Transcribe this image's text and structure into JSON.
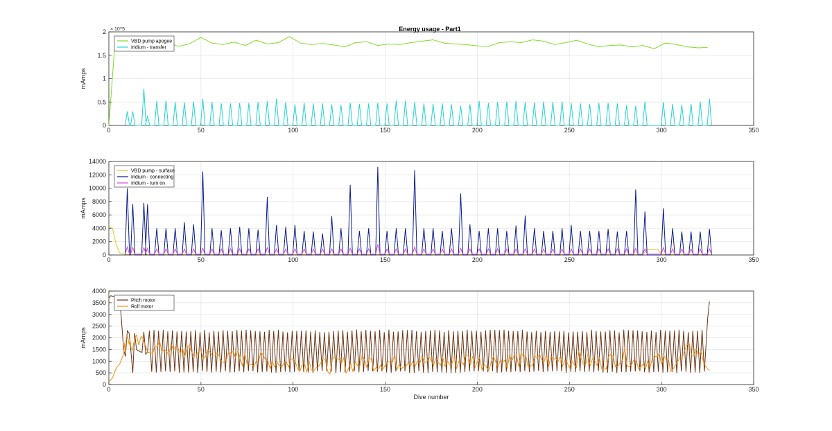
{
  "figure": {
    "title": "Energy usage - Part1"
  },
  "chart_data": [
    {
      "type": "line",
      "title": "Energy usage - Part1",
      "xlabel": "",
      "ylabel": "mAmps",
      "xlim": [
        0,
        350
      ],
      "ylim": [
        0,
        200000
      ],
      "xticks": [
        0,
        50,
        100,
        150,
        200,
        250,
        300,
        350
      ],
      "yticks": [
        0,
        50000,
        100000,
        150000,
        200000
      ],
      "ytick_labels": [
        "0",
        "0.5",
        "1",
        "1.5",
        "2"
      ],
      "y_exponent": "× 10^5",
      "grid": true,
      "legend_position": "top-left",
      "series": [
        {
          "name": "VBD pump apogee",
          "color": "#7fdb23",
          "x": [
            0,
            3,
            6,
            10,
            14,
            20,
            26,
            32,
            38,
            44,
            50,
            56,
            62,
            68,
            74,
            80,
            86,
            92,
            98,
            104,
            110,
            116,
            122,
            128,
            134,
            140,
            146,
            152,
            158,
            164,
            170,
            176,
            182,
            188,
            194,
            200,
            206,
            212,
            218,
            224,
            230,
            236,
            242,
            248,
            254,
            260,
            266,
            272,
            278,
            284,
            290,
            296,
            302,
            308,
            314,
            320,
            325
          ],
          "y": [
            0,
            160000,
            175000,
            170000,
            168000,
            172000,
            170000,
            175000,
            169000,
            175000,
            188000,
            176000,
            173000,
            178000,
            171000,
            182000,
            174000,
            177000,
            190000,
            176000,
            173000,
            175000,
            172000,
            168000,
            177000,
            179000,
            171000,
            174000,
            173000,
            177000,
            180000,
            183000,
            176000,
            174000,
            173000,
            170000,
            169000,
            177000,
            179000,
            177000,
            183000,
            180000,
            173000,
            177000,
            182000,
            174000,
            168000,
            171000,
            172000,
            168000,
            171000,
            164000,
            176000,
            173000,
            168000,
            166000,
            167000
          ]
        },
        {
          "name": "Iridium - transfer",
          "color": "#22d3d3",
          "peaks_x": [
            10,
            13,
            19,
            21,
            26,
            31,
            36,
            41,
            46,
            51,
            56,
            61,
            66,
            71,
            76,
            81,
            86,
            91,
            96,
            101,
            106,
            111,
            116,
            121,
            126,
            131,
            136,
            141,
            146,
            151,
            156,
            161,
            166,
            171,
            176,
            181,
            186,
            191,
            196,
            201,
            206,
            211,
            216,
            221,
            226,
            231,
            236,
            241,
            246,
            251,
            256,
            261,
            266,
            271,
            276,
            281,
            286,
            291,
            301,
            306,
            311,
            316,
            321,
            326
          ],
          "peaks_y": [
            30000,
            30000,
            78000,
            20000,
            52000,
            53000,
            50000,
            49000,
            51000,
            57000,
            50000,
            47000,
            47000,
            48000,
            48000,
            50000,
            52000,
            57000,
            50000,
            45000,
            48000,
            47000,
            47000,
            45000,
            44000,
            48000,
            46000,
            47000,
            48000,
            47000,
            53000,
            53000,
            50000,
            47000,
            46000,
            47000,
            45000,
            42000,
            45000,
            52000,
            48000,
            50000,
            51000,
            52000,
            50000,
            49000,
            51000,
            50000,
            51000,
            48000,
            47000,
            46000,
            48000,
            48000,
            47000,
            43000,
            42000,
            51000,
            50000,
            46000,
            44000,
            46000,
            51000,
            57000
          ]
        }
      ]
    },
    {
      "type": "line",
      "xlabel": "",
      "ylabel": "mAmps",
      "xlim": [
        0,
        350
      ],
      "ylim": [
        0,
        14000
      ],
      "xticks": [
        0,
        50,
        100,
        150,
        200,
        250,
        300,
        350
      ],
      "yticks": [
        0,
        2000,
        4000,
        6000,
        8000,
        10000,
        12000,
        14000
      ],
      "grid": true,
      "legend_position": "top-left",
      "series": [
        {
          "name": "VBD pump - surface",
          "color": "#e8c41d",
          "x": [
            0,
            2,
            4,
            6,
            8,
            10,
            100,
            200,
            290,
            292,
            298,
            300,
            310,
            326
          ],
          "y": [
            4200,
            4000,
            1500,
            300,
            150,
            100,
            100,
            100,
            100,
            800,
            800,
            100,
            100,
            100
          ]
        },
        {
          "name": "Iridium - connecting",
          "color": "#0a1a8c",
          "peaks_x": [
            10,
            13,
            19,
            21,
            26,
            31,
            36,
            41,
            46,
            51,
            56,
            61,
            66,
            71,
            76,
            81,
            86,
            91,
            96,
            101,
            106,
            111,
            116,
            121,
            126,
            131,
            136,
            141,
            146,
            151,
            156,
            161,
            166,
            171,
            176,
            181,
            186,
            191,
            196,
            201,
            206,
            211,
            216,
            221,
            226,
            231,
            236,
            241,
            246,
            251,
            256,
            261,
            266,
            271,
            276,
            281,
            286,
            291,
            301,
            306,
            311,
            316,
            321,
            326
          ],
          "peaks_y": [
            10000,
            7600,
            7800,
            7600,
            4000,
            4000,
            4000,
            4900,
            4600,
            12500,
            4000,
            3700,
            4000,
            4200,
            4000,
            3800,
            8700,
            4500,
            4200,
            4500,
            3600,
            3500,
            3200,
            5800,
            4000,
            10500,
            3600,
            4000,
            13200,
            3600,
            4000,
            4000,
            12700,
            4000,
            4000,
            3600,
            4000,
            9200,
            4600,
            3600,
            4000,
            4000,
            3600,
            4400,
            5900,
            4000,
            3600,
            3600,
            4000,
            4500,
            3600,
            3600,
            3600,
            3900,
            3500,
            3600,
            9800,
            6500,
            7000,
            4000,
            3500,
            3500,
            3500,
            3900
          ]
        },
        {
          "name": "Iridium - turn on",
          "color": "#d14bd1",
          "peaks_x": [
            10,
            13,
            19,
            21,
            26,
            31,
            36,
            41,
            46,
            51,
            56,
            61,
            66,
            71,
            76,
            81,
            86,
            91,
            96,
            101,
            106,
            111,
            116,
            121,
            126,
            131,
            136,
            141,
            146,
            151,
            156,
            161,
            166,
            171,
            176,
            181,
            186,
            191,
            196,
            201,
            206,
            211,
            216,
            221,
            226,
            231,
            236,
            241,
            246,
            251,
            256,
            261,
            266,
            271,
            276,
            281,
            286,
            291,
            301,
            306,
            311,
            316,
            321,
            326
          ],
          "peaks_y": [
            1200,
            1100,
            1100,
            1000,
            900,
            900,
            900,
            900,
            900,
            1000,
            900,
            900,
            900,
            900,
            900,
            900,
            1100,
            900,
            900,
            900,
            900,
            900,
            900,
            900,
            900,
            1000,
            900,
            900,
            1600,
            900,
            900,
            900,
            1200,
            900,
            900,
            900,
            900,
            1000,
            900,
            900,
            900,
            900,
            900,
            900,
            900,
            900,
            900,
            900,
            900,
            900,
            900,
            900,
            900,
            900,
            900,
            900,
            1000,
            900,
            1100,
            900,
            900,
            900,
            900,
            900
          ]
        }
      ]
    },
    {
      "type": "line",
      "xlabel": "Dive number",
      "ylabel": "mAmps",
      "xlim": [
        0,
        350
      ],
      "ylim": [
        0,
        4000
      ],
      "xticks": [
        0,
        50,
        100,
        150,
        200,
        250,
        300,
        350
      ],
      "yticks": [
        0,
        500,
        1000,
        1500,
        2000,
        2500,
        3000,
        3500,
        4000
      ],
      "grid": true,
      "legend_position": "top-left",
      "series": [
        {
          "name": "Pitch motor",
          "color": "#6b3312",
          "x": [
            0,
            1,
            2,
            3,
            4,
            5,
            6,
            7,
            8,
            9,
            10,
            11,
            12,
            13,
            14,
            15,
            16,
            17,
            18,
            19,
            20,
            21,
            22
          ],
          "y": [
            3700,
            3800,
            3780,
            3750,
            3700,
            3750,
            3600,
            2600,
            1500,
            1200,
            2300,
            2200,
            1400,
            500,
            2200,
            1500,
            1450,
            1400,
            1380,
            2250,
            1300,
            1400,
            2300
          ],
          "osc_x_start": 22,
          "osc_x_end": 324,
          "osc_period": 2.5,
          "osc_high": 2350,
          "osc_low": 500,
          "tail_x": [
            324,
            325,
            326
          ],
          "tail_y": [
            1500,
            2800,
            3550
          ]
        },
        {
          "name": "Roll motor",
          "color": "#f0900f",
          "x": [
            0,
            2,
            4,
            6,
            8,
            10,
            12,
            15,
            20,
            25,
            30,
            35,
            40,
            45,
            50,
            55,
            60,
            65,
            70,
            75,
            80,
            85,
            90,
            95,
            100,
            105,
            110,
            115,
            120,
            125,
            130,
            135,
            140,
            145,
            150,
            155,
            160,
            165,
            170,
            175,
            180,
            185,
            190,
            195,
            200,
            205,
            210,
            215,
            220,
            225,
            230,
            235,
            240,
            245,
            250,
            255,
            260,
            265,
            270,
            275,
            280,
            285,
            290,
            295,
            300,
            305,
            310,
            315,
            320,
            326
          ],
          "y": [
            100,
            300,
            700,
            900,
            1300,
            2200,
            1600,
            1800,
            1700,
            1500,
            1600,
            1400,
            1500,
            1300,
            1400,
            1200,
            1300,
            1100,
            1200,
            1000,
            1100,
            1000,
            1000,
            900,
            1000,
            900,
            900,
            800,
            800,
            900,
            800,
            900,
            1000,
            900,
            1000,
            900,
            1000,
            1100,
            1000,
            900,
            1000,
            900,
            1000,
            1100,
            1000,
            900,
            1100,
            1000,
            1100,
            1000,
            900,
            1100,
            1000,
            1100,
            1000,
            1100,
            1000,
            900,
            1000,
            1100,
            1200,
            1000,
            900,
            1100,
            1000,
            900,
            1000,
            1500,
            1400,
            600
          ],
          "noise": 350
        }
      ]
    }
  ]
}
